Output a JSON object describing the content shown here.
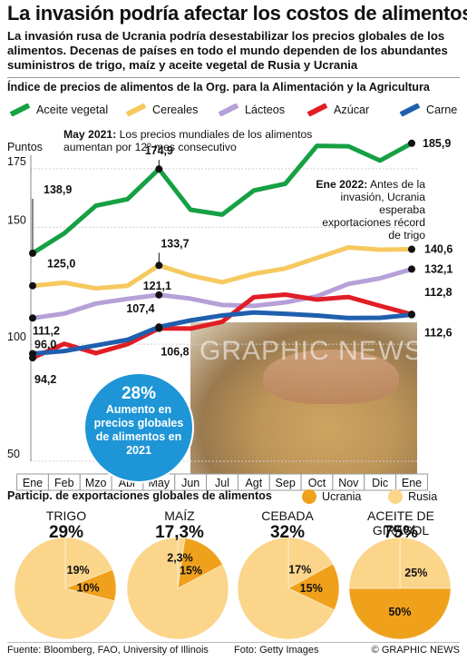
{
  "headline": "La invasión podría afectar los costos de alimentos",
  "subhead": "La invasión rusa de Ucrania podría desestabilizar los precios globales de los alimentos. Decenas de países en todo el mundo dependen de los abundantes suministros de trigo, maíz y aceite vegetal de Rusia y Ucrania",
  "colors": {
    "aceite": "#16a043",
    "cereales": "#f6c95f",
    "lacteos": "#b6a0d8",
    "azucar": "#e11d25",
    "carne": "#1f5fae",
    "ucrania": "#f0a11c",
    "rusia": "#fbd58a",
    "circle": "#1e95d6"
  },
  "chart_data": [
    {
      "type": "line",
      "title": "Índice de precios de alimentos de la Org. para la Alimentación y la Agricultura",
      "ylabel": "Puntos",
      "ylim": [
        50,
        180
      ],
      "yticks": [
        "175",
        "150",
        "100",
        "50"
      ],
      "categories": [
        "Ene",
        "Feb",
        "Mzo",
        "Abr",
        "May",
        "Jun",
        "Jul",
        "Agt",
        "Sep",
        "Oct",
        "Nov",
        "Dic",
        "Ene"
      ],
      "series": [
        {
          "key": "aceite",
          "name": "Aceite vegetal",
          "values": [
            138.9,
            147.4,
            159.2,
            162.0,
            174.9,
            157.5,
            155.4,
            165.7,
            168.6,
            184.8,
            184.6,
            178.5,
            185.9
          ]
        },
        {
          "key": "cereales",
          "name": "Cereales",
          "values": [
            125.0,
            126.3,
            123.9,
            125.0,
            133.7,
            129.4,
            126.5,
            130.1,
            132.4,
            136.9,
            141.4,
            140.4,
            140.6
          ]
        },
        {
          "key": "lacteos",
          "name": "Lácteos",
          "values": [
            111.2,
            113.1,
            117.4,
            119.4,
            121.1,
            119.5,
            116.8,
            116.4,
            117.9,
            120.5,
            125.8,
            128.2,
            132.1
          ]
        },
        {
          "key": "azucar",
          "name": "Azúcar",
          "values": [
            94.2,
            100.2,
            96.2,
            100.0,
            106.8,
            106.7,
            109.6,
            120.1,
            121.2,
            119.1,
            120.2,
            116.4,
            112.8
          ]
        },
        {
          "key": "carne",
          "name": "Carne",
          "values": [
            96.0,
            97.1,
            99.5,
            101.9,
            107.4,
            110.2,
            112.3,
            113.6,
            113.0,
            112.3,
            111.2,
            111.3,
            112.6
          ]
        }
      ],
      "data_labels": [
        "138,9",
        "174,9",
        "185,9",
        "125,0",
        "133,7",
        "140,6",
        "111,2",
        "121,1",
        "132,1",
        "96,0",
        "107,4",
        "112,8",
        "94,2",
        "106,8",
        "112,6"
      ],
      "annotations": [
        {
          "bold": "May 2021:",
          "text": "Los precios mundiales de los alimentos aumentan por 12º mes consecutivo"
        },
        {
          "bold": "Ene 2022:",
          "text": "Antes de la invasión, Ucrania esperaba exportaciones récord de trigo"
        }
      ]
    },
    {
      "type": "pie",
      "title": "Particip. de exportaciones globales de alimentos",
      "legend": [
        "Ucrania",
        "Rusia"
      ],
      "pies": [
        {
          "label": "TRIGO",
          "total": "29%",
          "ucrania": 10,
          "rusia": 19,
          "ucrania_label": "10%",
          "rusia_label": "19%"
        },
        {
          "label": "MAÍZ",
          "total": "17,3%",
          "ucrania": 15,
          "rusia": 2.3,
          "ucrania_label": "15%",
          "rusia_label": "2,3%"
        },
        {
          "label": "CEBADA",
          "total": "32%",
          "ucrania": 15,
          "rusia": 17,
          "ucrania_label": "15%",
          "rusia_label": "17%"
        },
        {
          "label": "ACEITE DE GIRASOL",
          "total": "75%",
          "ucrania": 50,
          "rusia": 25,
          "ucrania_label": "50%",
          "rusia_label": "25%"
        }
      ]
    }
  ],
  "circle": {
    "big": "28%",
    "text": "Aumento en precios globales de alimentos en 2021"
  },
  "watermark": "GRAPHIC NEWS",
  "footer": {
    "source": "Fuente: Bloomberg, FAO, University of Illinois",
    "photo": "Foto: Getty Images",
    "credit": "© GRAPHIC NEWS"
  }
}
